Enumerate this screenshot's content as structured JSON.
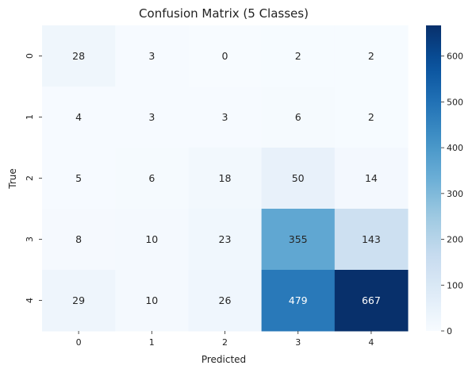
{
  "chart_data": {
    "type": "heatmap",
    "title": "Confusion Matrix (5 Classes)",
    "xlabel": "Predicted",
    "ylabel": "True",
    "x_categories": [
      "0",
      "1",
      "2",
      "3",
      "4"
    ],
    "y_categories": [
      "0",
      "1",
      "2",
      "3",
      "4"
    ],
    "values": [
      [
        28,
        3,
        0,
        2,
        2
      ],
      [
        4,
        3,
        3,
        6,
        2
      ],
      [
        5,
        6,
        18,
        50,
        14
      ],
      [
        8,
        10,
        23,
        355,
        143
      ],
      [
        29,
        10,
        26,
        479,
        667
      ]
    ],
    "colormap": "Blues",
    "color_range": [
      0,
      667
    ],
    "colorbar": {
      "ticks": [
        0,
        100,
        200,
        300,
        400,
        500,
        600
      ],
      "tick_labels": [
        "0",
        "100",
        "200",
        "300",
        "400",
        "500",
        "600"
      ],
      "placement": "right"
    },
    "grid": false
  }
}
